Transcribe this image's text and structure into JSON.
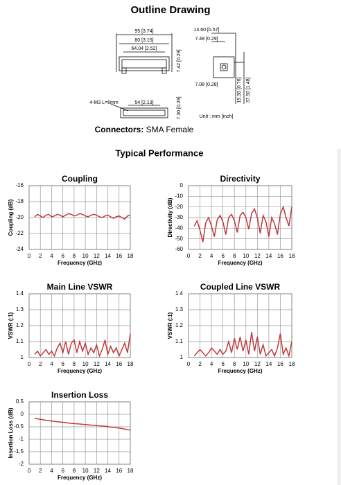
{
  "header": {
    "title": "Outline Drawing"
  },
  "drawing": {
    "labels": [
      "95 [3.74]",
      "80 [3.15]",
      "64.04 [2.52]",
      "7.42 [0.29]",
      "14.60 [0.57]",
      "7.48 [0.29]",
      "7.08 [0.28]",
      "19.30 [0.76]",
      "37.50 [1.48]",
      "4-M3  L=6mm",
      "54 [2.13]",
      "7.30 [0.29]",
      "Unit : mm [inch]"
    ]
  },
  "connectors": {
    "label": "Connectors:",
    "value": "SMA Female"
  },
  "section": {
    "title": "Typical Performance"
  },
  "chart_data": [
    {
      "type": "line",
      "title": "Coupling",
      "x_label": "Frequency (GHz)",
      "y_label": "Coupling (dB)",
      "xlim": [
        0,
        18
      ],
      "xticks": [
        0,
        2,
        4,
        6,
        8,
        10,
        12,
        14,
        16,
        18
      ],
      "ylim": [
        -24,
        -16
      ],
      "yticks": [
        -16,
        -18,
        -20,
        -22,
        -24
      ],
      "grid": true,
      "color": "#c0393b",
      "x": [
        1,
        1.5,
        2,
        2.5,
        3,
        3.5,
        4,
        4.5,
        5,
        5.5,
        6,
        6.5,
        7,
        7.5,
        8,
        8.5,
        9,
        9.5,
        10,
        10.5,
        11,
        11.5,
        12,
        12.5,
        13,
        13.5,
        14,
        14.5,
        15,
        15.5,
        16,
        16.5,
        17,
        17.5,
        18
      ],
      "values": [
        -19.9,
        -19.6,
        -19.8,
        -20.0,
        -19.7,
        -19.6,
        -19.9,
        -19.8,
        -19.6,
        -19.7,
        -19.9,
        -19.7,
        -19.5,
        -19.6,
        -19.8,
        -19.7,
        -19.5,
        -19.6,
        -19.8,
        -19.9,
        -19.7,
        -19.6,
        -19.7,
        -19.9,
        -20.0,
        -19.8,
        -19.7,
        -19.9,
        -20.1,
        -19.9,
        -19.8,
        -20.0,
        -20.2,
        -19.8,
        -19.7
      ]
    },
    {
      "type": "line",
      "title": "Directivity",
      "x_label": "Frequency (GHz)",
      "y_label": "Directivity (dB)",
      "xlim": [
        0,
        18
      ],
      "xticks": [
        0,
        2,
        4,
        6,
        8,
        10,
        12,
        14,
        16,
        18
      ],
      "ylim": [
        -60,
        0
      ],
      "yticks": [
        0,
        -10,
        -20,
        -30,
        -40,
        -50,
        -60
      ],
      "grid": true,
      "color": "#c0393b",
      "x": [
        1,
        1.5,
        2,
        2.5,
        3,
        3.5,
        4,
        4.5,
        5,
        5.5,
        6,
        6.5,
        7,
        7.5,
        8,
        8.5,
        9,
        9.5,
        10,
        10.5,
        11,
        11.5,
        12,
        12.5,
        13,
        13.5,
        14,
        14.5,
        15,
        15.5,
        16,
        16.5,
        17,
        17.5,
        18
      ],
      "values": [
        -38,
        -33,
        -42,
        -53,
        -35,
        -30,
        -38,
        -48,
        -32,
        -28,
        -34,
        -46,
        -30,
        -27,
        -33,
        -44,
        -28,
        -25,
        -30,
        -41,
        -26,
        -22,
        -30,
        -45,
        -28,
        -34,
        -48,
        -30,
        -36,
        -46,
        -27,
        -20,
        -30,
        -38,
        -20
      ]
    },
    {
      "type": "line",
      "title": "Main Line VSWR",
      "x_label": "Frequency (GHz)",
      "y_label": "VSWR (:1)",
      "xlim": [
        0,
        18
      ],
      "xticks": [
        0,
        2,
        4,
        6,
        8,
        10,
        12,
        14,
        16,
        18
      ],
      "ylim": [
        1,
        1.4
      ],
      "yticks": [
        1.4,
        1.3,
        1.2,
        1.1,
        1
      ],
      "grid": true,
      "color": "#c0393b",
      "x": [
        1,
        1.5,
        2,
        2.5,
        3,
        3.5,
        4,
        4.5,
        5,
        5.5,
        6,
        6.5,
        7,
        7.5,
        8,
        8.5,
        9,
        9.5,
        10,
        10.5,
        11,
        11.5,
        12,
        12.5,
        13,
        13.5,
        14,
        14.5,
        15,
        15.5,
        16,
        16.5,
        17,
        17.5,
        18
      ],
      "values": [
        1.02,
        1.04,
        1.01,
        1.03,
        1.05,
        1.02,
        1.04,
        1.01,
        1.06,
        1.09,
        1.03,
        1.1,
        1.02,
        1.09,
        1.11,
        1.03,
        1.1,
        1.04,
        1.09,
        1.02,
        1.06,
        1.03,
        1.08,
        1.01,
        1.05,
        1.11,
        1.02,
        1.07,
        1.03,
        1.06,
        1.01,
        1.05,
        1.09,
        1.03,
        1.15
      ]
    },
    {
      "type": "line",
      "title": "Coupled Line VSWR",
      "x_label": "Frequency (GHz)",
      "y_label": "VSWR (:1)",
      "xlim": [
        0,
        18
      ],
      "xticks": [
        0,
        2,
        4,
        6,
        8,
        10,
        12,
        14,
        16,
        18
      ],
      "ylim": [
        1,
        1.4
      ],
      "yticks": [
        1.4,
        1.3,
        1.2,
        1.1,
        1
      ],
      "grid": true,
      "color": "#c0393b",
      "x": [
        1,
        1.5,
        2,
        2.5,
        3,
        3.5,
        4,
        4.5,
        5,
        5.5,
        6,
        6.5,
        7,
        7.5,
        8,
        8.5,
        9,
        9.5,
        10,
        10.5,
        11,
        11.5,
        12,
        12.5,
        13,
        13.5,
        14,
        14.5,
        15,
        15.5,
        16,
        16.5,
        17,
        17.5,
        18
      ],
      "values": [
        1.01,
        1.03,
        1.05,
        1.03,
        1.01,
        1.03,
        1.06,
        1.04,
        1.02,
        1.05,
        1.02,
        1.04,
        1.1,
        1.03,
        1.12,
        1.05,
        1.13,
        1.04,
        1.11,
        1.02,
        1.16,
        1.04,
        1.13,
        1.02,
        1.08,
        1.01,
        1.03,
        1.05,
        1.01,
        1.06,
        1.15,
        1.02,
        1.06,
        1.01,
        1.1
      ]
    },
    {
      "type": "line",
      "title": "Insertion Loss",
      "x_label": "Frequency (GHz)",
      "y_label": "Insertion Loss (dB)",
      "xlim": [
        0,
        18
      ],
      "xticks": [
        0,
        2,
        4,
        6,
        8,
        10,
        12,
        14,
        16,
        18
      ],
      "ylim": [
        -2,
        0.5
      ],
      "yticks": [
        0.5,
        0,
        -0.5,
        -1,
        -1.5,
        -2
      ],
      "grid": true,
      "color": "#c0393b",
      "x": [
        1,
        1.5,
        2,
        2.5,
        3,
        3.5,
        4,
        4.5,
        5,
        5.5,
        6,
        6.5,
        7,
        7.5,
        8,
        8.5,
        9,
        9.5,
        10,
        10.5,
        11,
        11.5,
        12,
        12.5,
        13,
        13.5,
        14,
        14.5,
        15,
        15.5,
        16,
        16.5,
        17,
        17.5,
        18
      ],
      "values": [
        -0.15,
        -0.18,
        -0.2,
        -0.22,
        -0.24,
        -0.25,
        -0.27,
        -0.28,
        -0.3,
        -0.31,
        -0.32,
        -0.33,
        -0.35,
        -0.36,
        -0.37,
        -0.38,
        -0.39,
        -0.4,
        -0.41,
        -0.42,
        -0.43,
        -0.44,
        -0.45,
        -0.46,
        -0.47,
        -0.48,
        -0.49,
        -0.51,
        -0.52,
        -0.54,
        -0.55,
        -0.57,
        -0.59,
        -0.61,
        -0.64
      ]
    }
  ]
}
